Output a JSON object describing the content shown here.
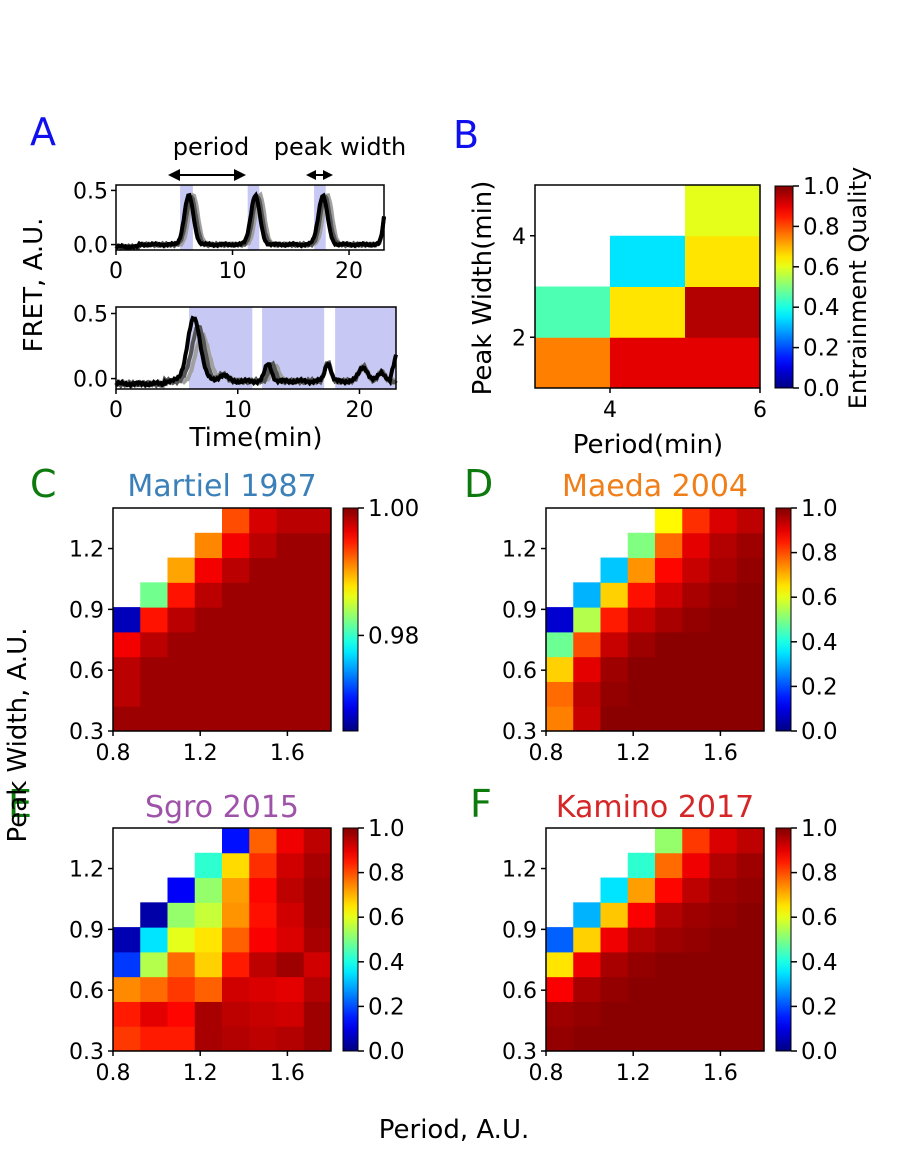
{
  "chart_data": {
    "panel_labels": {
      "A": "A",
      "B": "B",
      "C": "C",
      "D": "D",
      "E": "E",
      "F": "F"
    },
    "panel_label_colors": {
      "AB": "#1010ee",
      "CDEF": "#0c7a0c"
    },
    "shared_axes": {
      "ylabel": "Peak Width, A.U.",
      "xlabel": "Period, A.U."
    },
    "panel_A": {
      "type": "line",
      "ylabel": "FRET, A.U.",
      "xlabel": "Time(min)",
      "annotations": {
        "period": "period",
        "peak_width": "peak width"
      },
      "series_colors": [
        "#000000",
        "#555555",
        "#a0a0a0"
      ],
      "shade_color": "#c8c8f5",
      "top": {
        "xlim": [
          0,
          23
        ],
        "ylim": [
          -0.05,
          0.55
        ],
        "xticks": [
          "0",
          "10",
          "20"
        ],
        "xtick_values": [
          0,
          10,
          20
        ],
        "yticks": [
          "0.0",
          "0.5"
        ],
        "ytick_values": [
          0,
          0.5
        ],
        "stim_windows": [
          [
            5.5,
            6.6
          ],
          [
            11.3,
            12.3
          ],
          [
            17.0,
            18.0
          ]
        ]
      },
      "bottom": {
        "xlim": [
          0,
          23
        ],
        "ylim": [
          -0.08,
          0.55
        ],
        "xticks": [
          "0",
          "10",
          "20"
        ],
        "xtick_values": [
          0,
          10,
          20
        ],
        "yticks": [
          "0.0",
          "0.5"
        ],
        "ytick_values": [
          0,
          0.5
        ],
        "stim_windows": [
          [
            6.0,
            11.2
          ],
          [
            12.0,
            17.1
          ],
          [
            18.0,
            23.0
          ]
        ]
      }
    },
    "panel_B": {
      "type": "heatmap",
      "xlabel": "Period(min)",
      "ylabel": "Peak Width(min)",
      "xlim": [
        3,
        6
      ],
      "ylim": [
        1,
        5
      ],
      "xticks": [
        "4",
        "6"
      ],
      "xtick_values": [
        4,
        6
      ],
      "yticks": [
        "2",
        "4"
      ],
      "ytick_values": [
        2,
        4
      ],
      "colorbar_label": "Entrainment Quality",
      "colorbar_ticks": [
        "0.0",
        "0.2",
        "0.4",
        "0.6",
        "0.8",
        "1.0"
      ],
      "clim": [
        0,
        1
      ],
      "grid": [
        [
          0.75,
          0.9,
          0.9
        ],
        [
          0.45,
          0.65,
          0.95
        ],
        [
          null,
          0.35,
          0.65
        ],
        [
          null,
          null,
          0.6
        ]
      ]
    },
    "heatmap_panels": [
      {
        "key": "C",
        "title": "Martiel 1987",
        "title_color": "#3b80b8",
        "clim": [
          0.965,
          1.0
        ],
        "colorbar_ticks": [
          "0.98",
          "1.00"
        ],
        "colorbar_tick_values": [
          0.98,
          1.0
        ],
        "grid": [
          [
            0.999,
            0.999,
            0.999,
            0.999,
            0.999,
            0.999,
            0.999,
            0.999
          ],
          [
            0.998,
            0.999,
            0.999,
            0.999,
            0.999,
            0.999,
            0.999,
            0.999
          ],
          [
            0.998,
            0.999,
            0.999,
            0.999,
            0.999,
            0.999,
            0.999,
            0.999
          ],
          [
            0.996,
            0.998,
            0.999,
            0.999,
            0.999,
            0.999,
            0.999,
            0.999
          ],
          [
            0.967,
            0.995,
            0.998,
            0.999,
            0.999,
            0.999,
            0.999,
            0.999
          ],
          [
            null,
            0.982,
            0.995,
            0.998,
            0.999,
            0.999,
            0.999,
            0.999
          ],
          [
            null,
            null,
            0.99,
            0.996,
            0.998,
            0.999,
            0.999,
            0.999
          ],
          [
            null,
            null,
            null,
            0.991,
            0.996,
            0.998,
            0.999,
            0.999
          ],
          [
            null,
            null,
            null,
            null,
            0.993,
            0.997,
            0.998,
            0.998
          ]
        ]
      },
      {
        "key": "D",
        "title": "Maeda 2004",
        "title_color": "#f07f1a",
        "clim": [
          0,
          1
        ],
        "colorbar_ticks": [
          "0.0",
          "0.2",
          "0.4",
          "0.6",
          "0.8",
          "1.0"
        ],
        "colorbar_tick_values": [
          0,
          0.2,
          0.4,
          0.6,
          0.8,
          1.0
        ],
        "grid": [
          [
            0.75,
            0.93,
            0.99,
            0.99,
            0.99,
            0.99,
            0.99,
            0.99
          ],
          [
            0.77,
            0.94,
            0.98,
            0.99,
            0.99,
            0.99,
            0.99,
            0.99
          ],
          [
            0.67,
            0.9,
            0.97,
            0.99,
            0.99,
            0.99,
            0.99,
            0.99
          ],
          [
            0.48,
            0.8,
            0.93,
            0.97,
            0.99,
            0.99,
            0.99,
            0.99
          ],
          [
            0.08,
            0.55,
            0.85,
            0.93,
            0.96,
            0.98,
            0.99,
            0.99
          ],
          [
            null,
            0.3,
            0.67,
            0.86,
            0.92,
            0.96,
            0.98,
            0.99
          ],
          [
            null,
            null,
            0.32,
            0.73,
            0.87,
            0.93,
            0.96,
            0.98
          ],
          [
            null,
            null,
            null,
            0.5,
            0.77,
            0.9,
            0.95,
            0.97
          ],
          [
            null,
            null,
            null,
            null,
            0.63,
            0.83,
            0.91,
            0.94
          ]
        ]
      },
      {
        "key": "E",
        "title": "Sgro 2015",
        "title_color": "#9e53a8",
        "clim": [
          0,
          1
        ],
        "colorbar_ticks": [
          "0.0",
          "0.2",
          "0.4",
          "0.6",
          "0.8",
          "1.0"
        ],
        "colorbar_tick_values": [
          0,
          0.2,
          0.4,
          0.6,
          0.8,
          1.0
        ],
        "grid": [
          [
            0.82,
            0.85,
            0.85,
            0.96,
            0.95,
            0.94,
            0.95,
            0.97
          ],
          [
            0.85,
            0.9,
            0.87,
            0.96,
            0.94,
            0.93,
            0.92,
            0.97
          ],
          [
            0.74,
            0.77,
            0.82,
            0.78,
            0.92,
            0.91,
            0.9,
            0.95
          ],
          [
            0.18,
            0.55,
            0.77,
            0.67,
            0.85,
            0.94,
            0.97,
            0.92
          ],
          [
            0.05,
            0.35,
            0.6,
            0.65,
            0.78,
            0.88,
            0.91,
            0.96
          ],
          [
            null,
            0.04,
            0.52,
            0.57,
            0.73,
            0.86,
            0.92,
            0.97
          ],
          [
            null,
            null,
            0.12,
            0.52,
            0.72,
            0.87,
            0.94,
            0.97
          ],
          [
            null,
            null,
            null,
            0.42,
            0.66,
            0.83,
            0.92,
            0.96
          ],
          [
            null,
            null,
            null,
            null,
            0.14,
            0.78,
            0.89,
            0.94
          ]
        ]
      },
      {
        "key": "F",
        "title": "Kamino 2017",
        "title_color": "#d62728",
        "clim": [
          0,
          1
        ],
        "colorbar_ticks": [
          "0.0",
          "0.2",
          "0.4",
          "0.6",
          "0.8",
          "1.0"
        ],
        "colorbar_tick_values": [
          0,
          0.2,
          0.4,
          0.6,
          0.8,
          1.0
        ],
        "grid": [
          [
            0.98,
            0.99,
            0.99,
            0.99,
            0.99,
            0.99,
            0.99,
            0.99
          ],
          [
            0.97,
            0.98,
            0.99,
            0.99,
            0.99,
            0.99,
            0.99,
            0.99
          ],
          [
            0.88,
            0.96,
            0.98,
            0.99,
            0.99,
            0.99,
            0.99,
            0.99
          ],
          [
            0.65,
            0.89,
            0.96,
            0.98,
            0.99,
            0.99,
            0.99,
            0.99
          ],
          [
            0.22,
            0.67,
            0.89,
            0.95,
            0.97,
            0.98,
            0.99,
            0.99
          ],
          [
            null,
            0.3,
            0.68,
            0.88,
            0.95,
            0.97,
            0.98,
            0.99
          ],
          [
            null,
            null,
            0.35,
            0.72,
            0.87,
            0.94,
            0.97,
            0.98
          ],
          [
            null,
            null,
            null,
            0.42,
            0.77,
            0.89,
            0.95,
            0.97
          ],
          [
            null,
            null,
            null,
            null,
            0.52,
            0.82,
            0.91,
            0.94
          ]
        ]
      }
    ],
    "heatmap_axes": {
      "xticks": [
        "0.8",
        "1.2",
        "1.6"
      ],
      "xtick_values": [
        0.8,
        1.2,
        1.6
      ],
      "yticks": [
        "0.3",
        "0.6",
        "0.9",
        "1.2"
      ],
      "ytick_values": [
        0.3,
        0.6,
        0.9,
        1.2
      ],
      "xlim": [
        0.8,
        1.8
      ],
      "ylim": [
        0.3,
        1.4
      ],
      "colormap": "jet"
    }
  }
}
